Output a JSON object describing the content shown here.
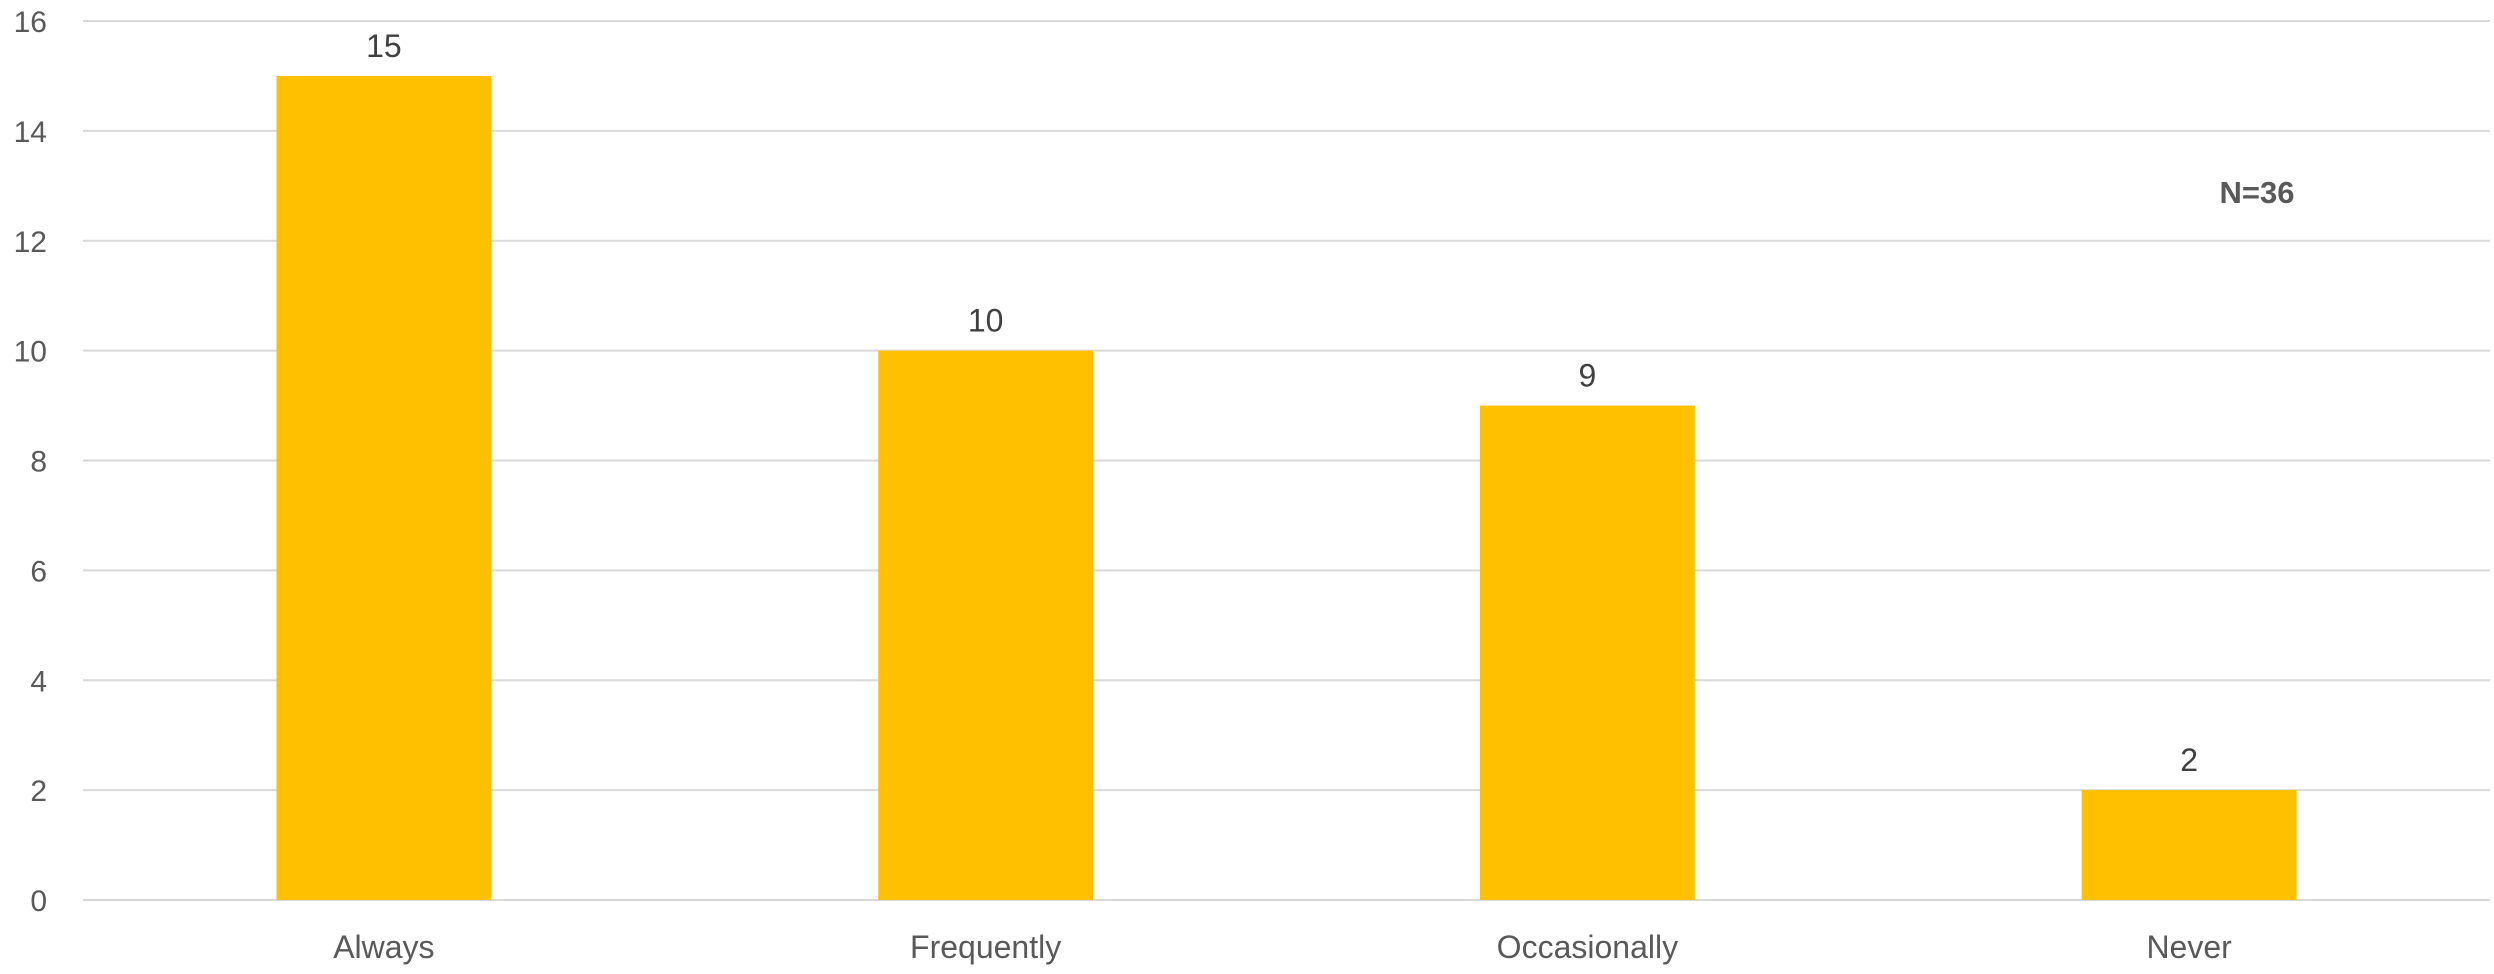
{
  "chart_data": {
    "type": "bar",
    "categories": [
      "Always",
      "Frequently",
      "Occasionally",
      "Never"
    ],
    "values": [
      15,
      10,
      9,
      2
    ],
    "ylim": [
      0,
      16
    ],
    "yticks": [
      0,
      2,
      4,
      6,
      8,
      10,
      12,
      14,
      16
    ],
    "grid": true,
    "legend": "none",
    "bar_color": "#FFC000",
    "annotation": "N=36",
    "title": "",
    "xlabel": "",
    "ylabel": ""
  }
}
